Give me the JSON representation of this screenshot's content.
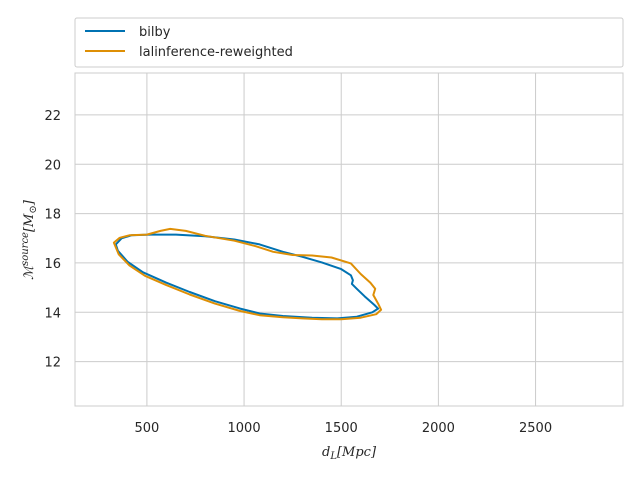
{
  "chart_data": {
    "type": "line",
    "subtype": "contour",
    "xlabel": "d_L[Mpc]",
    "ylabel": "M^{source}[M_⊙]",
    "xlim": [
      130,
      2950
    ],
    "ylim": [
      10.2,
      23.7
    ],
    "x_ticks": [
      500,
      1000,
      1500,
      2000,
      2500
    ],
    "y_ticks": [
      12,
      14,
      16,
      18,
      20,
      22
    ],
    "grid": true,
    "legend_position": "top, above plot",
    "series": [
      {
        "name": "bilby",
        "color": "#0072b2",
        "points": [
          [
            340,
            16.75
          ],
          [
            370,
            17.0
          ],
          [
            420,
            17.12
          ],
          [
            520,
            17.15
          ],
          [
            650,
            17.15
          ],
          [
            800,
            17.08
          ],
          [
            950,
            16.95
          ],
          [
            1080,
            16.75
          ],
          [
            1200,
            16.45
          ],
          [
            1300,
            16.25
          ],
          [
            1400,
            16.02
          ],
          [
            1500,
            15.75
          ],
          [
            1550,
            15.5
          ],
          [
            1560,
            15.3
          ],
          [
            1555,
            15.15
          ],
          [
            1580,
            14.95
          ],
          [
            1620,
            14.65
          ],
          [
            1670,
            14.3
          ],
          [
            1690,
            14.15
          ],
          [
            1660,
            14.0
          ],
          [
            1580,
            13.82
          ],
          [
            1480,
            13.75
          ],
          [
            1350,
            13.78
          ],
          [
            1200,
            13.85
          ],
          [
            1080,
            13.95
          ],
          [
            980,
            14.15
          ],
          [
            850,
            14.45
          ],
          [
            720,
            14.82
          ],
          [
            600,
            15.2
          ],
          [
            480,
            15.62
          ],
          [
            400,
            16.05
          ],
          [
            350,
            16.5
          ],
          [
            340,
            16.75
          ]
        ]
      },
      {
        "name": "lalinference-reweighted",
        "color": "#de8f05",
        "points": [
          [
            330,
            16.82
          ],
          [
            360,
            17.02
          ],
          [
            410,
            17.12
          ],
          [
            500,
            17.15
          ],
          [
            570,
            17.3
          ],
          [
            620,
            17.38
          ],
          [
            700,
            17.3
          ],
          [
            800,
            17.1
          ],
          [
            950,
            16.9
          ],
          [
            1060,
            16.68
          ],
          [
            1150,
            16.45
          ],
          [
            1250,
            16.32
          ],
          [
            1350,
            16.3
          ],
          [
            1450,
            16.22
          ],
          [
            1550,
            15.98
          ],
          [
            1600,
            15.55
          ],
          [
            1650,
            15.2
          ],
          [
            1675,
            14.95
          ],
          [
            1665,
            14.7
          ],
          [
            1690,
            14.35
          ],
          [
            1705,
            14.1
          ],
          [
            1680,
            13.92
          ],
          [
            1600,
            13.78
          ],
          [
            1500,
            13.72
          ],
          [
            1400,
            13.72
          ],
          [
            1300,
            13.75
          ],
          [
            1200,
            13.8
          ],
          [
            1080,
            13.88
          ],
          [
            980,
            14.05
          ],
          [
            850,
            14.35
          ],
          [
            720,
            14.72
          ],
          [
            600,
            15.1
          ],
          [
            490,
            15.48
          ],
          [
            410,
            15.9
          ],
          [
            355,
            16.35
          ],
          [
            330,
            16.82
          ]
        ]
      }
    ]
  }
}
